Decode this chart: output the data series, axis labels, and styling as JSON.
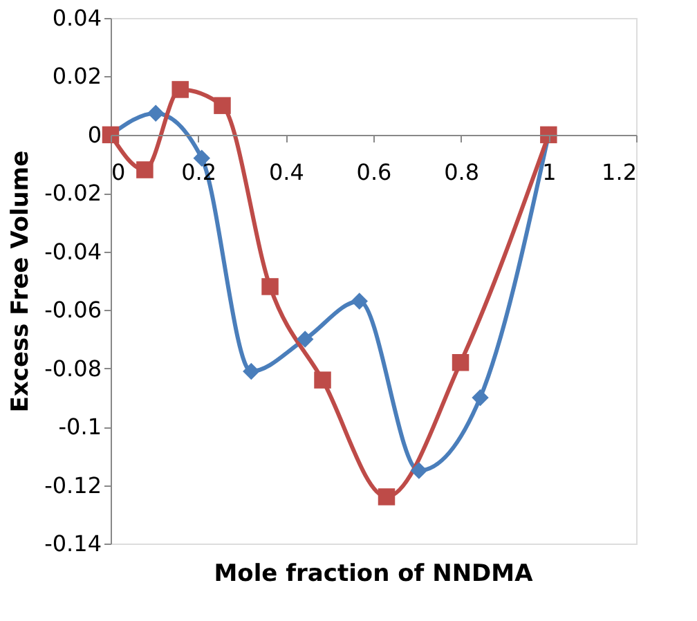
{
  "chart_data": {
    "type": "line",
    "xlabel": "Mole fraction of NNDMA",
    "ylabel": "Excess Free Volume",
    "xlim": [
      0,
      1.2
    ],
    "xticks": [
      0,
      0.2,
      0.4,
      0.6,
      0.8,
      1,
      1.2
    ],
    "ylim": [
      -0.14,
      0.04
    ],
    "yticks": [
      -0.14,
      -0.12,
      -0.1,
      -0.08,
      -0.06,
      -0.04,
      -0.02,
      0,
      0.02,
      0.04
    ],
    "grid": false,
    "legend": false,
    "series": [
      {
        "color": "#4a7ebb",
        "marker": "diamond",
        "x": [
          0,
          0.103,
          0.208,
          0.321,
          0.444,
          0.568,
          0.704,
          0.844,
          1
        ],
        "values": [
          0,
          0.0074,
          -0.008,
          -0.081,
          -0.07,
          -0.057,
          -0.115,
          -0.09,
          0
        ]
      },
      {
        "color": "#be4b48",
        "marker": "square",
        "x": [
          0,
          0.078,
          0.159,
          0.255,
          0.364,
          0.484,
          0.63,
          0.799,
          1
        ],
        "values": [
          0,
          -0.012,
          0.0155,
          0.01,
          -0.052,
          -0.084,
          -0.124,
          -0.078,
          0
        ]
      }
    ]
  }
}
